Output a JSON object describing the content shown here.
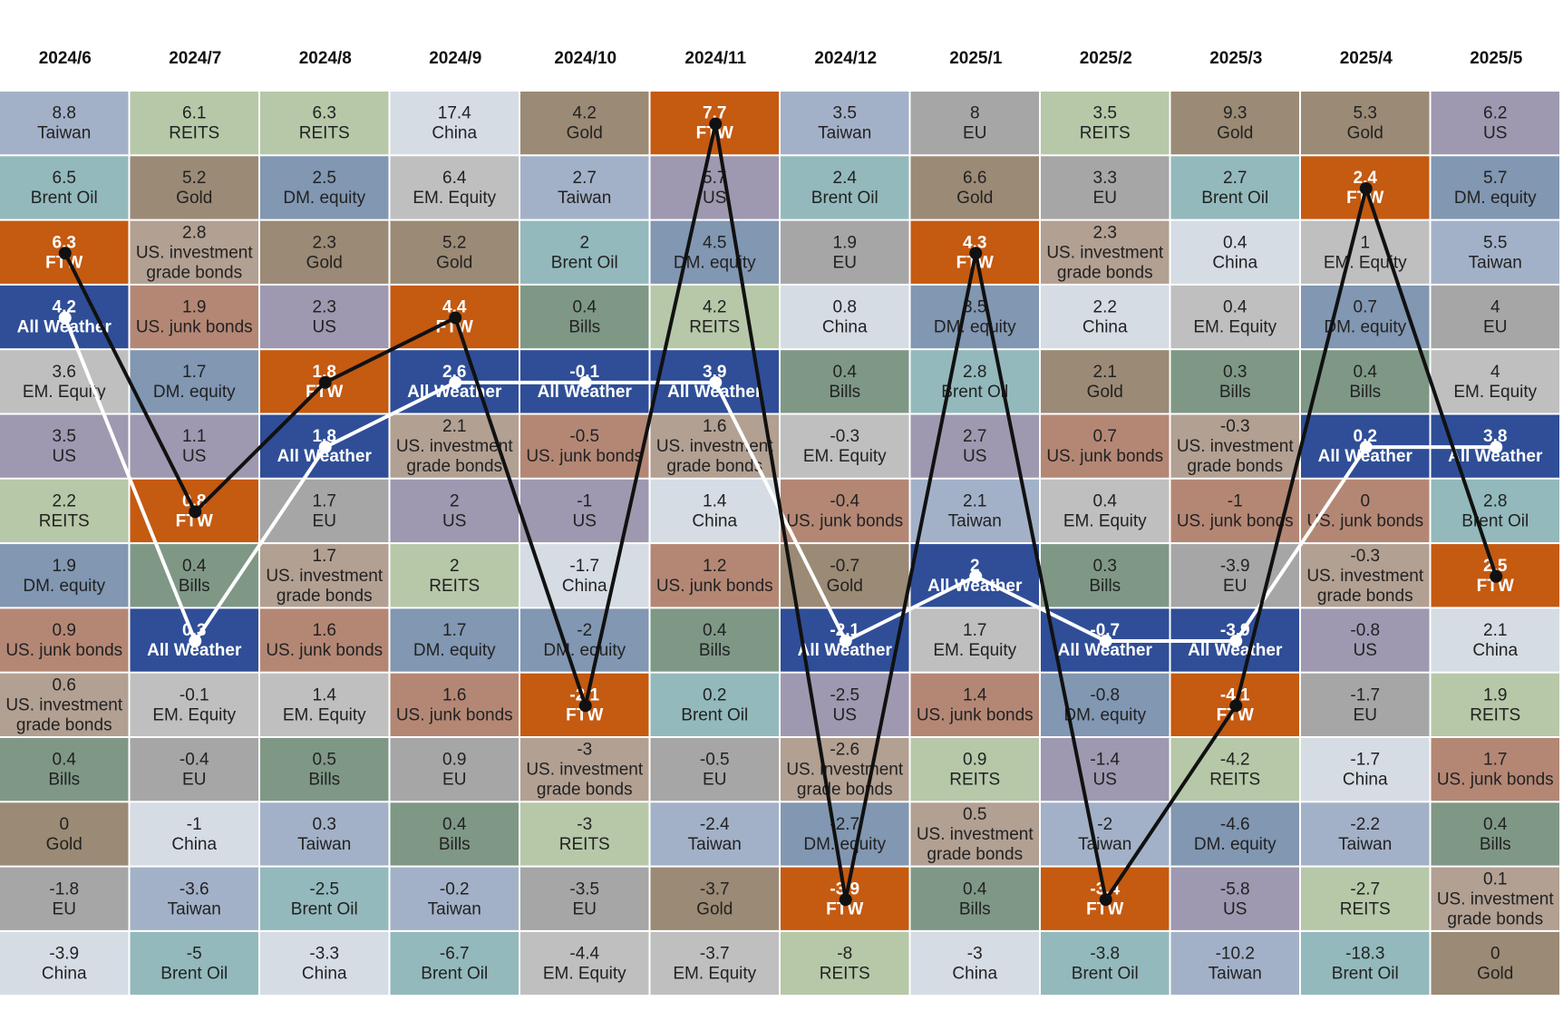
{
  "chart_data": {
    "type": "table",
    "months": [
      "2024/6",
      "2024/7",
      "2024/8",
      "2024/9",
      "2024/10",
      "2024/11",
      "2024/12",
      "2025/1",
      "2025/2",
      "2025/3",
      "2025/4",
      "2025/5"
    ],
    "columns": [
      [
        [
          "8.8",
          "Taiwan"
        ],
        [
          "6.5",
          "Brent Oil"
        ],
        [
          "6.3",
          "FTW"
        ],
        [
          "4.2",
          "All Weather"
        ],
        [
          "3.6",
          "EM. Equity"
        ],
        [
          "3.5",
          "US"
        ],
        [
          "2.2",
          "REITS"
        ],
        [
          "1.9",
          "DM. equity"
        ],
        [
          "0.9",
          "US. junk bonds"
        ],
        [
          "0.6",
          "US. investment grade bonds"
        ],
        [
          "0.4",
          "Bills"
        ],
        [
          "0",
          "Gold"
        ],
        [
          "-1.8",
          "EU"
        ],
        [
          "-3.9",
          "China"
        ]
      ],
      [
        [
          "6.1",
          "REITS"
        ],
        [
          "5.2",
          "Gold"
        ],
        [
          "2.8",
          "US. investment grade bonds"
        ],
        [
          "1.9",
          "US. junk bonds"
        ],
        [
          "1.7",
          "DM. equity"
        ],
        [
          "1.1",
          "US"
        ],
        [
          "0.8",
          "FTW"
        ],
        [
          "0.4",
          "Bills"
        ],
        [
          "0.3",
          "All Weather"
        ],
        [
          "-0.1",
          "EM. Equity"
        ],
        [
          "-0.4",
          "EU"
        ],
        [
          "-1",
          "China"
        ],
        [
          "-3.6",
          "Taiwan"
        ],
        [
          "-5",
          "Brent Oil"
        ]
      ],
      [
        [
          "6.3",
          "REITS"
        ],
        [
          "2.5",
          "DM. equity"
        ],
        [
          "2.3",
          "Gold"
        ],
        [
          "2.3",
          "US"
        ],
        [
          "1.8",
          "FTW"
        ],
        [
          "1.8",
          "All Weather"
        ],
        [
          "1.7",
          "EU"
        ],
        [
          "1.7",
          "US. investment grade bonds"
        ],
        [
          "1.6",
          "US. junk bonds"
        ],
        [
          "1.4",
          "EM. Equity"
        ],
        [
          "0.5",
          "Bills"
        ],
        [
          "0.3",
          "Taiwan"
        ],
        [
          "-2.5",
          "Brent Oil"
        ],
        [
          "-3.3",
          "China"
        ]
      ],
      [
        [
          "17.4",
          "China"
        ],
        [
          "6.4",
          "EM. Equity"
        ],
        [
          "5.2",
          "Gold"
        ],
        [
          "4.4",
          "FTW"
        ],
        [
          "2.6",
          "All Weather"
        ],
        [
          "2.1",
          "US. investment grade bonds"
        ],
        [
          "2",
          "US"
        ],
        [
          "2",
          "REITS"
        ],
        [
          "1.7",
          "DM. equity"
        ],
        [
          "1.6",
          "US. junk bonds"
        ],
        [
          "0.9",
          "EU"
        ],
        [
          "0.4",
          "Bills"
        ],
        [
          "-0.2",
          "Taiwan"
        ],
        [
          "-6.7",
          "Brent Oil"
        ]
      ],
      [
        [
          "4.2",
          "Gold"
        ],
        [
          "2.7",
          "Taiwan"
        ],
        [
          "2",
          "Brent Oil"
        ],
        [
          "0.4",
          "Bills"
        ],
        [
          "-0.1",
          "All Weather"
        ],
        [
          "-0.5",
          "US. junk bonds"
        ],
        [
          "-1",
          "US"
        ],
        [
          "-1.7",
          "China"
        ],
        [
          "-2",
          "DM. equity"
        ],
        [
          "-2.1",
          "FTW"
        ],
        [
          "-3",
          "US. investment grade bonds"
        ],
        [
          "-3",
          "REITS"
        ],
        [
          "-3.5",
          "EU"
        ],
        [
          "-4.4",
          "EM. Equity"
        ]
      ],
      [
        [
          "7.7",
          "FTW"
        ],
        [
          "5.7",
          "US"
        ],
        [
          "4.5",
          "DM. equity"
        ],
        [
          "4.2",
          "REITS"
        ],
        [
          "3.9",
          "All Weather"
        ],
        [
          "1.6",
          "US. investment grade bonds"
        ],
        [
          "1.4",
          "China"
        ],
        [
          "1.2",
          "US. junk bonds"
        ],
        [
          "0.4",
          "Bills"
        ],
        [
          "0.2",
          "Brent Oil"
        ],
        [
          "-0.5",
          "EU"
        ],
        [
          "-2.4",
          "Taiwan"
        ],
        [
          "-3.7",
          "Gold"
        ],
        [
          "-3.7",
          "EM. Equity"
        ]
      ],
      [
        [
          "3.5",
          "Taiwan"
        ],
        [
          "2.4",
          "Brent Oil"
        ],
        [
          "1.9",
          "EU"
        ],
        [
          "0.8",
          "China"
        ],
        [
          "0.4",
          "Bills"
        ],
        [
          "-0.3",
          "EM. Equity"
        ],
        [
          "-0.4",
          "US. junk bonds"
        ],
        [
          "-0.7",
          "Gold"
        ],
        [
          "-2.1",
          "All Weather"
        ],
        [
          "-2.5",
          "US"
        ],
        [
          "-2.6",
          "US. investment grade bonds"
        ],
        [
          "-2.7",
          "DM. equity"
        ],
        [
          "-3.9",
          "FTW"
        ],
        [
          "-8",
          "REITS"
        ]
      ],
      [
        [
          "8",
          "EU"
        ],
        [
          "6.6",
          "Gold"
        ],
        [
          "4.3",
          "FTW"
        ],
        [
          "3.5",
          "DM. equity"
        ],
        [
          "2.8",
          "Brent Oil"
        ],
        [
          "2.7",
          "US"
        ],
        [
          "2.1",
          "Taiwan"
        ],
        [
          "2",
          "All Weather"
        ],
        [
          "1.7",
          "EM. Equity"
        ],
        [
          "1.4",
          "US. junk bonds"
        ],
        [
          "0.9",
          "REITS"
        ],
        [
          "0.5",
          "US. investment grade bonds"
        ],
        [
          "0.4",
          "Bills"
        ],
        [
          "-3",
          "China"
        ]
      ],
      [
        [
          "3.5",
          "REITS"
        ],
        [
          "3.3",
          "EU"
        ],
        [
          "2.3",
          "US. investment grade bonds"
        ],
        [
          "2.2",
          "China"
        ],
        [
          "2.1",
          "Gold"
        ],
        [
          "0.7",
          "US. junk bonds"
        ],
        [
          "0.4",
          "EM. Equity"
        ],
        [
          "0.3",
          "Bills"
        ],
        [
          "-0.7",
          "All Weather"
        ],
        [
          "-0.8",
          "DM. equity"
        ],
        [
          "-1.4",
          "US"
        ],
        [
          "-2",
          "Taiwan"
        ],
        [
          "-3.4",
          "FTW"
        ],
        [
          "-3.8",
          "Brent Oil"
        ]
      ],
      [
        [
          "9.3",
          "Gold"
        ],
        [
          "2.7",
          "Brent Oil"
        ],
        [
          "0.4",
          "China"
        ],
        [
          "0.4",
          "EM. Equity"
        ],
        [
          "0.3",
          "Bills"
        ],
        [
          "-0.3",
          "US. investment grade bonds"
        ],
        [
          "-1",
          "US. junk bonds"
        ],
        [
          "-3.9",
          "EU"
        ],
        [
          "-3.9",
          "All Weather"
        ],
        [
          "-4.1",
          "FTW"
        ],
        [
          "-4.2",
          "REITS"
        ],
        [
          "-4.6",
          "DM. equity"
        ],
        [
          "-5.8",
          "US"
        ],
        [
          "-10.2",
          "Taiwan"
        ]
      ],
      [
        [
          "5.3",
          "Gold"
        ],
        [
          "2.4",
          "FTW"
        ],
        [
          "1",
          "EM. Equity"
        ],
        [
          "0.7",
          "DM. equity"
        ],
        [
          "0.4",
          "Bills"
        ],
        [
          "0.2",
          "All Weather"
        ],
        [
          "0",
          "US. junk bonds"
        ],
        [
          "-0.3",
          "US. investment grade bonds"
        ],
        [
          "-0.8",
          "US"
        ],
        [
          "-1.7",
          "EU"
        ],
        [
          "-1.7",
          "China"
        ],
        [
          "-2.2",
          "Taiwan"
        ],
        [
          "-2.7",
          "REITS"
        ],
        [
          "-18.3",
          "Brent Oil"
        ]
      ],
      [
        [
          "6.2",
          "US"
        ],
        [
          "5.7",
          "DM. equity"
        ],
        [
          "5.5",
          "Taiwan"
        ],
        [
          "4",
          "EU"
        ],
        [
          "4",
          "EM. Equity"
        ],
        [
          "3.8",
          "All Weather"
        ],
        [
          "2.8",
          "Brent Oil"
        ],
        [
          "2.5",
          "FTW"
        ],
        [
          "2.1",
          "China"
        ],
        [
          "1.9",
          "REITS"
        ],
        [
          "1.7",
          "US. junk bonds"
        ],
        [
          "0.4",
          "Bills"
        ],
        [
          "0.1",
          "US. investment grade bonds"
        ],
        [
          "0",
          "Gold"
        ]
      ]
    ],
    "lines": [
      {
        "name": "FTW",
        "color": "#111111",
        "ranks": [
          2,
          6,
          4,
          3,
          9,
          0,
          12,
          2,
          12,
          9,
          1,
          7
        ]
      },
      {
        "name": "All Weather",
        "color": "#ffffff",
        "ranks": [
          3,
          8,
          5,
          4,
          4,
          4,
          8,
          7,
          8,
          8,
          5,
          5
        ]
      }
    ],
    "colors": {
      "Taiwan": "#a3b1c8",
      "Brent Oil": "#93b9bc",
      "FTW": "#c55a11",
      "All Weather": "#2f4e97",
      "EM. Equity": "#bfbfbf",
      "US": "#9e99b0",
      "REITS": "#b6c8a8",
      "DM. equity": "#8197b2",
      "US. junk bonds": "#b48775",
      "US. investment grade bonds": "#b2a092",
      "Bills": "#7f9886",
      "Gold": "#9b8a75",
      "EU": "#a6a6a6",
      "China": "#d6dce4"
    },
    "light_text_assets": [
      "FTW",
      "All Weather"
    ]
  }
}
